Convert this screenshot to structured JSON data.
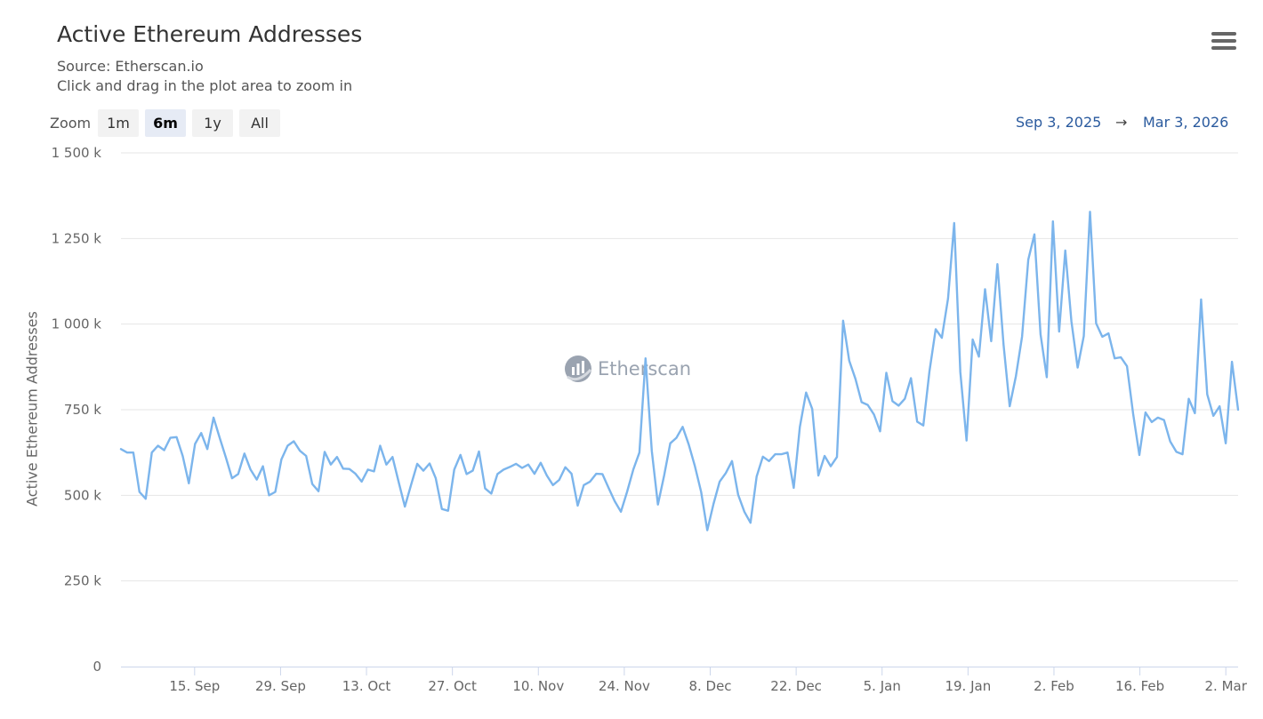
{
  "header": {
    "title": "Active Ethereum Addresses",
    "source": "Source: Etherscan.io",
    "hint": "Click and drag in the plot area to zoom in"
  },
  "toolbar": {
    "zoom_label": "Zoom",
    "buttons": [
      "1m",
      "6m",
      "1y",
      "All"
    ],
    "active": "6m",
    "range_start": "Sep 3, 2025",
    "range_arrow": "→",
    "range_end": "Mar 3, 2026",
    "menu_icon": "hamburger-menu-icon"
  },
  "watermark": {
    "text": "Etherscan",
    "icon": "etherscan-logo-icon"
  },
  "colors": {
    "line": "#7cb5ec",
    "grid": "#e6e6e6",
    "axis": "#ccd6eb",
    "range": "#2a5a9e"
  },
  "chart_data": {
    "type": "line",
    "title": "Active Ethereum Addresses",
    "ylabel": "Active Ethereum Addresses",
    "xlabel": "",
    "ylim": [
      0,
      1500000
    ],
    "yticks": [
      0,
      250000,
      500000,
      750000,
      1000000,
      1250000,
      1500000
    ],
    "ytick_labels": [
      "0",
      "250 k",
      "500 k",
      "750 k",
      "1 000 k",
      "1 250 k",
      "1 500 k"
    ],
    "x_start": "2025-09-03",
    "x_end": "2026-03-03",
    "xtick_labels": [
      "15. Sep",
      "29. Sep",
      "13. Oct",
      "27. Oct",
      "10. Nov",
      "24. Nov",
      "8. Dec",
      "22. Dec",
      "5. Jan",
      "19. Jan",
      "2. Feb",
      "16. Feb",
      "2. Mar"
    ],
    "xtick_days": [
      12,
      26,
      40,
      54,
      68,
      82,
      96,
      110,
      124,
      138,
      152,
      166,
      180
    ],
    "series": [
      {
        "name": "Active Ethereum Addresses",
        "values": [
          635000,
          625000,
          625000,
          510000,
          490000,
          625000,
          645000,
          632000,
          668000,
          670000,
          615000,
          535000,
          650000,
          682000,
          635000,
          727000,
          668000,
          610000,
          550000,
          562000,
          622000,
          575000,
          546000,
          585000,
          500000,
          510000,
          605000,
          645000,
          658000,
          630000,
          615000,
          533000,
          512000,
          627000,
          590000,
          612000,
          578000,
          577000,
          563000,
          540000,
          575000,
          570000,
          645000,
          590000,
          612000,
          538000,
          467000,
          530000,
          592000,
          572000,
          593000,
          550000,
          460000,
          455000,
          575000,
          618000,
          562000,
          572000,
          628000,
          520000,
          505000,
          562000,
          575000,
          583000,
          592000,
          580000,
          590000,
          563000,
          595000,
          558000,
          530000,
          545000,
          582000,
          563000,
          470000,
          530000,
          540000,
          563000,
          562000,
          522000,
          483000,
          452000,
          510000,
          575000,
          625000,
          900000,
          630000,
          473000,
          558000,
          652000,
          668000,
          700000,
          648000,
          585000,
          510000,
          398000,
          475000,
          540000,
          565000,
          600000,
          502000,
          452000,
          420000,
          555000,
          613000,
          600000,
          620000,
          620000,
          625000,
          522000,
          700000,
          800000,
          752000,
          558000,
          615000,
          585000,
          612000,
          1010000,
          893000,
          840000,
          772000,
          764000,
          736000,
          687000,
          858000,
          775000,
          762000,
          782000,
          842000,
          715000,
          704000,
          862000,
          985000,
          960000,
          1075000,
          1295000,
          860000,
          660000,
          955000,
          905000,
          1102000,
          950000,
          1175000,
          940000,
          760000,
          848000,
          963000,
          1188000,
          1262000,
          970000,
          845000,
          1300000,
          978000,
          1215000,
          1008000,
          873000,
          965000,
          1328000,
          1002000,
          963000,
          973000,
          900000,
          903000,
          877000,
          738000,
          618000,
          742000,
          714000,
          727000,
          720000,
          657000,
          627000,
          620000,
          782000,
          740000,
          1072000,
          795000,
          732000,
          760000,
          652000,
          890000,
          750000
        ]
      }
    ]
  }
}
